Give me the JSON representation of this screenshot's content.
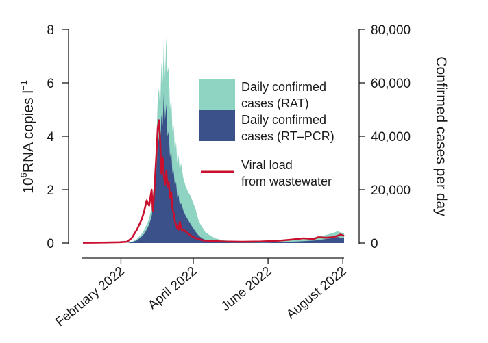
{
  "chart_data": {
    "type": "area+line",
    "x_axis": {
      "ticks": [
        {
          "label": "February 2022",
          "day": 31
        },
        {
          "label": "April 2022",
          "day": 90
        },
        {
          "label": "June 2022",
          "day": 151
        },
        {
          "label": "August 2022",
          "day": 212
        }
      ],
      "range_days": [
        0,
        213
      ]
    },
    "y_left": {
      "label_main": "RNA copies l",
      "label_power_base": "10",
      "label_power_exp": "6",
      "label_suffix_exp": "−1",
      "ticks": [
        {
          "label": "0",
          "value": 0
        },
        {
          "label": "2",
          "value": 2
        },
        {
          "label": "4",
          "value": 4
        },
        {
          "label": "6",
          "value": 6
        },
        {
          "label": "8",
          "value": 8
        }
      ],
      "range": [
        0,
        8
      ]
    },
    "y_right": {
      "label": "Confirmed cases per day",
      "ticks": [
        {
          "label": "0",
          "value": 0
        },
        {
          "label": "20,000",
          "value": 20000
        },
        {
          "label": "40,000",
          "value": 40000
        },
        {
          "label": "60,000",
          "value": 60000
        },
        {
          "label": "80,000",
          "value": 80000
        }
      ],
      "range": [
        0,
        80000
      ]
    },
    "series": [
      {
        "name": "Daily confirmed cases (RAT)",
        "legend_line1": "Daily confirmed",
        "legend_line2": "cases (RAT)",
        "kind": "stacked-area",
        "axis": "right",
        "color": "#8fd3c2",
        "points": [
          [
            0,
            0
          ],
          [
            20,
            0
          ],
          [
            30,
            0
          ],
          [
            36,
            0
          ],
          [
            40,
            500
          ],
          [
            44,
            1500
          ],
          [
            48,
            3500
          ],
          [
            50,
            5000
          ],
          [
            52,
            7000
          ],
          [
            54,
            9000
          ],
          [
            56,
            14000
          ],
          [
            58,
            22000
          ],
          [
            60,
            40000
          ],
          [
            61,
            54000
          ],
          [
            62,
            58000
          ],
          [
            63,
            50000
          ],
          [
            64,
            68000
          ],
          [
            65,
            60000
          ],
          [
            66,
            76000
          ],
          [
            67,
            62000
          ],
          [
            68,
            77000
          ],
          [
            69,
            64000
          ],
          [
            70,
            66000
          ],
          [
            71,
            50000
          ],
          [
            72,
            55000
          ],
          [
            73,
            42000
          ],
          [
            74,
            44000
          ],
          [
            75,
            34000
          ],
          [
            76,
            38000
          ],
          [
            77,
            30000
          ],
          [
            78,
            33000
          ],
          [
            79,
            27000
          ],
          [
            80,
            30000
          ],
          [
            82,
            24000
          ],
          [
            84,
            21000
          ],
          [
            86,
            19000
          ],
          [
            88,
            17500
          ],
          [
            90,
            15000
          ],
          [
            92,
            12500
          ],
          [
            94,
            9000
          ],
          [
            96,
            7000
          ],
          [
            98,
            5500
          ],
          [
            100,
            4000
          ],
          [
            104,
            2800
          ],
          [
            108,
            1800
          ],
          [
            112,
            1300
          ],
          [
            118,
            900
          ],
          [
            130,
            600
          ],
          [
            150,
            500
          ],
          [
            160,
            700
          ],
          [
            170,
            1000
          ],
          [
            180,
            1400
          ],
          [
            190,
            2200
          ],
          [
            198,
            3000
          ],
          [
            204,
            3800
          ],
          [
            208,
            4500
          ],
          [
            210,
            4000
          ],
          [
            213,
            3800
          ]
        ]
      },
      {
        "name": "Daily confirmed cases (RT–PCR)",
        "legend_line1": "Daily confirmed",
        "legend_line2": "cases (RT–PCR)",
        "kind": "area",
        "axis": "right",
        "color": "#3b5189",
        "points": [
          [
            0,
            0
          ],
          [
            20,
            0
          ],
          [
            30,
            0
          ],
          [
            36,
            0
          ],
          [
            40,
            300
          ],
          [
            44,
            1000
          ],
          [
            48,
            2500
          ],
          [
            50,
            3500
          ],
          [
            52,
            5000
          ],
          [
            54,
            7000
          ],
          [
            56,
            10000
          ],
          [
            58,
            16000
          ],
          [
            60,
            28000
          ],
          [
            61,
            36000
          ],
          [
            62,
            40000
          ],
          [
            63,
            35000
          ],
          [
            64,
            48000
          ],
          [
            65,
            44000
          ],
          [
            66,
            57000
          ],
          [
            67,
            46000
          ],
          [
            68,
            52000
          ],
          [
            69,
            40000
          ],
          [
            70,
            42000
          ],
          [
            71,
            32000
          ],
          [
            72,
            35000
          ],
          [
            73,
            26000
          ],
          [
            74,
            27000
          ],
          [
            75,
            21000
          ],
          [
            76,
            23000
          ],
          [
            77,
            17000
          ],
          [
            78,
            18000
          ],
          [
            79,
            14000
          ],
          [
            80,
            15000
          ],
          [
            82,
            12000
          ],
          [
            84,
            10000
          ],
          [
            86,
            8500
          ],
          [
            88,
            7000
          ],
          [
            90,
            5500
          ],
          [
            92,
            4200
          ],
          [
            94,
            3000
          ],
          [
            96,
            2200
          ],
          [
            98,
            1600
          ],
          [
            100,
            1200
          ],
          [
            104,
            800
          ],
          [
            108,
            500
          ],
          [
            112,
            350
          ],
          [
            118,
            250
          ],
          [
            130,
            200
          ],
          [
            150,
            200
          ],
          [
            160,
            300
          ],
          [
            170,
            500
          ],
          [
            180,
            700
          ],
          [
            190,
            1000
          ],
          [
            198,
            1500
          ],
          [
            204,
            1900
          ],
          [
            208,
            2300
          ],
          [
            210,
            2000
          ],
          [
            213,
            1900
          ]
        ]
      },
      {
        "name": "Viral load from wastewater",
        "legend_line1": "Viral load",
        "legend_line2": "from wastewater",
        "kind": "line",
        "axis": "left",
        "color": "#c8102e",
        "points": [
          [
            0,
            0.01
          ],
          [
            20,
            0.02
          ],
          [
            30,
            0.03
          ],
          [
            36,
            0.05
          ],
          [
            40,
            0.2
          ],
          [
            44,
            0.5
          ],
          [
            48,
            0.9
          ],
          [
            50,
            1.2
          ],
          [
            52,
            1.6
          ],
          [
            54,
            1.4
          ],
          [
            56,
            2.0
          ],
          [
            57,
            1.2
          ],
          [
            58,
            1.8
          ],
          [
            59,
            2.6
          ],
          [
            60,
            3.4
          ],
          [
            61,
            4.3
          ],
          [
            62,
            4.6
          ],
          [
            63,
            3.8
          ],
          [
            64,
            2.6
          ],
          [
            65,
            3.2
          ],
          [
            66,
            2.5
          ],
          [
            67,
            2.2
          ],
          [
            68,
            2.7
          ],
          [
            69,
            2.1
          ],
          [
            70,
            2.3
          ],
          [
            71,
            1.7
          ],
          [
            72,
            1.9
          ],
          [
            73,
            1.3
          ],
          [
            74,
            1.1
          ],
          [
            75,
            0.8
          ],
          [
            76,
            0.7
          ],
          [
            77,
            0.55
          ],
          [
            78,
            0.5
          ],
          [
            79,
            0.8
          ],
          [
            80,
            0.6
          ],
          [
            81,
            0.45
          ],
          [
            82,
            0.5
          ],
          [
            84,
            0.42
          ],
          [
            86,
            0.35
          ],
          [
            88,
            0.28
          ],
          [
            90,
            0.22
          ],
          [
            94,
            0.15
          ],
          [
            98,
            0.1
          ],
          [
            104,
            0.08
          ],
          [
            115,
            0.06
          ],
          [
            130,
            0.05
          ],
          [
            145,
            0.06
          ],
          [
            160,
            0.09
          ],
          [
            170,
            0.13
          ],
          [
            180,
            0.18
          ],
          [
            188,
            0.15
          ],
          [
            192,
            0.22
          ],
          [
            198,
            0.2
          ],
          [
            204,
            0.22
          ],
          [
            208,
            0.28
          ],
          [
            210,
            0.32
          ],
          [
            212,
            0.29
          ],
          [
            213,
            0.27
          ]
        ]
      }
    ]
  }
}
